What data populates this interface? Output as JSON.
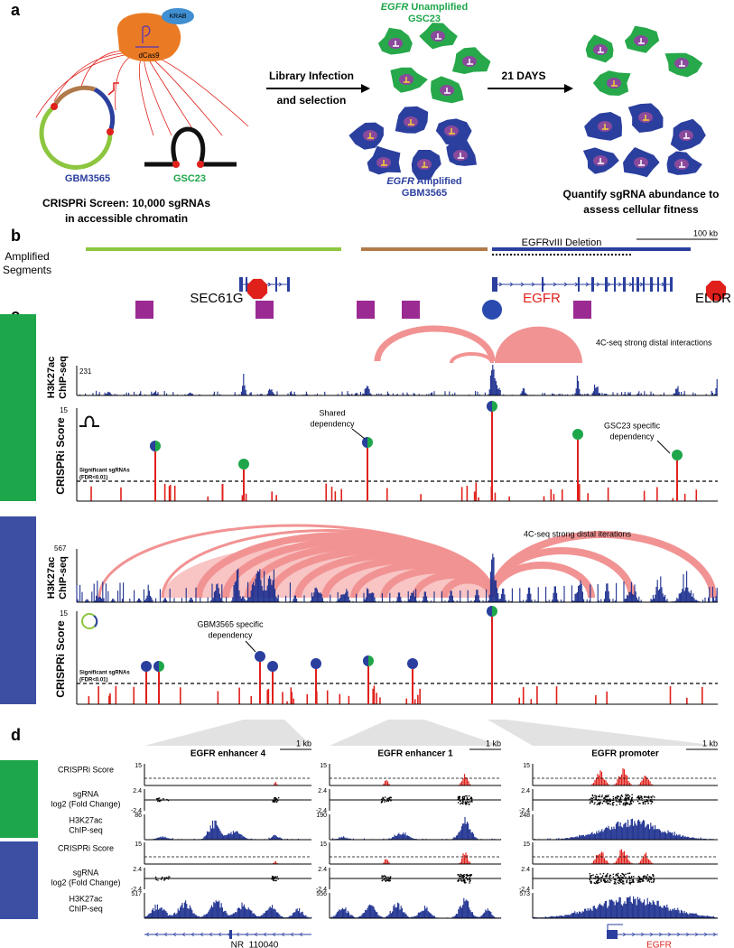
{
  "panel_a": {
    "label": "a",
    "krab": "KRAB",
    "dcas9": "dCas9",
    "plasmid": "GBM3565",
    "loop": "GSC23",
    "screen": [
      "CRISPRi Screen: 10,000 sgRNAs",
      "in accessible chromatin"
    ],
    "infection": [
      "Library Infection",
      "and  selection"
    ],
    "unamplified": {
      "gene": "EGFR",
      "status": " Unamplified",
      "line": "GSC23"
    },
    "amplified": {
      "gene": "EGFR",
      "status": " Amplified",
      "line": "GBM3565"
    },
    "duration": "21 DAYS",
    "readout": [
      "Quantify sgRNA abundance to",
      "assess cellular fitness"
    ]
  },
  "panel_b": {
    "label": "b",
    "segments": [
      "Amplified",
      "Segments"
    ],
    "deletion": "EGFRvIII Deletion",
    "scale": "100 kb",
    "genes": [
      "SEC61G",
      "EGFR",
      "ELDR"
    ]
  },
  "panel_c": {
    "label": "c",
    "chip_label": [
      "H3K27ac",
      "ChIP-seq"
    ],
    "score_label": "CRISPRi Score",
    "score_max": 15,
    "threshold": [
      "Significant sgRNAs",
      "(FDR<0.01)"
    ],
    "gsc23": {
      "interactions": "4C-seq strong distal interactions",
      "chip_max": 231,
      "annotations": [
        [
          "Shared",
          "dependency"
        ],
        [
          "GSC23 specific",
          "dependency"
        ]
      ]
    },
    "gbm3565": {
      "interactions": "4C-seq strong distal iterations",
      "chip_max": 567,
      "annotations": [
        [
          "GBM3565 specific",
          "dependency"
        ]
      ]
    }
  },
  "panel_d": {
    "label": "d",
    "regions": [
      {
        "title": "EGFR enhancer 4",
        "scale": "1 kb",
        "chip_max": [
          86,
          517
        ]
      },
      {
        "title": "EGFR enhancer 1",
        "scale": "1 kb",
        "chip_max": [
          190,
          556
        ]
      },
      {
        "title": "EGFR promoter",
        "scale": "1 kb",
        "chip_max": [
          248,
          573
        ]
      }
    ],
    "row_labels": {
      "score": "CRISPRi Score",
      "lfc": [
        "sgRNA",
        "log2 (Fold Change)"
      ],
      "chip": [
        "H3K27ac",
        "ChIP-seq"
      ]
    },
    "score_max": 15,
    "lfc_range": [
      2.4,
      -2.4
    ],
    "genes": [
      "NR_110040",
      "EGFR"
    ]
  }
}
